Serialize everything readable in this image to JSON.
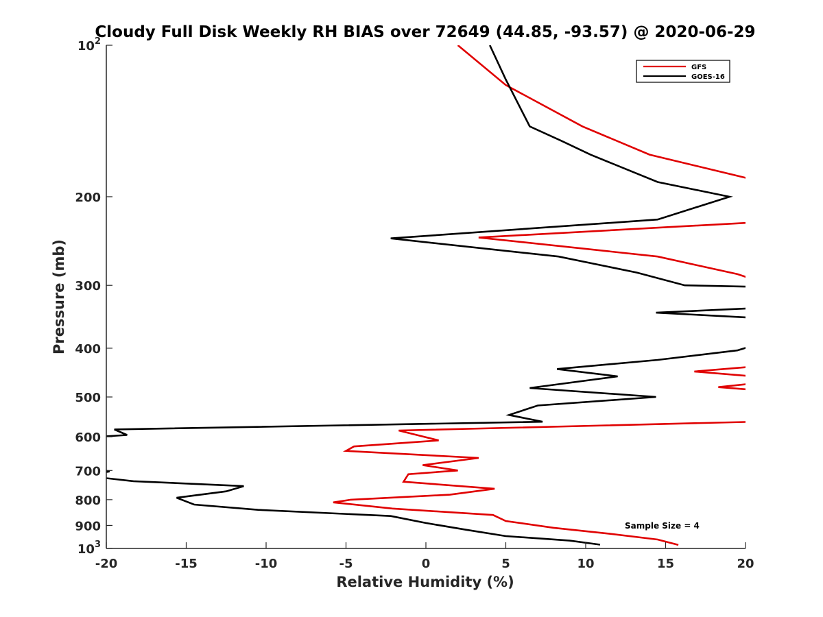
{
  "chart_data": {
    "type": "line",
    "title": "Cloudy Full Disk Weekly RH BIAS over 72649 (44.85, -93.57) @ 2020-06-29",
    "xlabel": "Relative Humidity (%)",
    "ylabel": "Pressure (mb)",
    "xlim": [
      -20,
      20
    ],
    "ylim": [
      100,
      1000
    ],
    "y_scale": "log",
    "y_reversed": true,
    "grid": false,
    "legend_position": "top-right",
    "x_ticks": [
      {
        "value": -20,
        "label": "-20"
      },
      {
        "value": -15,
        "label": "-15"
      },
      {
        "value": -10,
        "label": "-10"
      },
      {
        "value": -5,
        "label": "-5"
      },
      {
        "value": 0,
        "label": "0"
      },
      {
        "value": 5,
        "label": "5"
      },
      {
        "value": 10,
        "label": "10"
      },
      {
        "value": 15,
        "label": "15"
      },
      {
        "value": 20,
        "label": "20"
      }
    ],
    "y_ticks": [
      {
        "value": 100,
        "base": "10",
        "exp": "2"
      },
      {
        "value": 200,
        "label": "200"
      },
      {
        "value": 300,
        "label": "300"
      },
      {
        "value": 400,
        "label": "400"
      },
      {
        "value": 500,
        "label": "500"
      },
      {
        "value": 600,
        "label": "600"
      },
      {
        "value": 700,
        "label": "700"
      },
      {
        "value": 800,
        "label": "800"
      },
      {
        "value": 900,
        "label": "900"
      },
      {
        "value": 1000,
        "base": "10",
        "exp": "3"
      }
    ],
    "series": [
      {
        "name": "GFS",
        "color": "#e00000",
        "points": [
          [
            2.0,
            100
          ],
          [
            5.0,
            120
          ],
          [
            9.8,
            145
          ],
          [
            14.0,
            165
          ],
          [
            20.5,
            185
          ],
          [
            null,
            null
          ],
          [
            20.5,
            225
          ],
          [
            3.3,
            241
          ],
          [
            14.5,
            263
          ],
          [
            19.5,
            285
          ],
          [
            20.5,
            292
          ],
          [
            null,
            null
          ],
          [
            20.5,
            435
          ],
          [
            16.8,
            445
          ],
          [
            20.5,
            455
          ],
          [
            null,
            null
          ],
          [
            20.5,
            470
          ],
          [
            18.3,
            478
          ],
          [
            20.5,
            484
          ],
          [
            null,
            null
          ],
          [
            20.5,
            560
          ],
          [
            -1.7,
            583
          ],
          [
            0.8,
            610
          ],
          [
            -4.5,
            627
          ],
          [
            -5.0,
            640
          ],
          [
            3.3,
            661
          ],
          [
            -0.2,
            683
          ],
          [
            2.0,
            700
          ],
          [
            -1.1,
            712
          ],
          [
            -1.4,
            737
          ],
          [
            4.3,
            761
          ],
          [
            1.5,
            782
          ],
          [
            -4.7,
            800
          ],
          [
            -5.8,
            810
          ],
          [
            -2.1,
            833
          ],
          [
            4.2,
            858
          ],
          [
            5.0,
            882
          ],
          [
            8.0,
            910
          ],
          [
            11.5,
            935
          ],
          [
            14.5,
            960
          ],
          [
            15.8,
            984
          ]
        ]
      },
      {
        "name": "GOES-16",
        "color": "#000000",
        "points": [
          [
            4.0,
            100
          ],
          [
            5.0,
            117
          ],
          [
            6.5,
            145
          ],
          [
            8.5,
            155
          ],
          [
            10.3,
            165
          ],
          [
            14.5,
            187
          ],
          [
            19.0,
            200
          ],
          [
            14.5,
            222
          ],
          [
            -2.2,
            242
          ],
          [
            8.3,
            263
          ],
          [
            13.2,
            283
          ],
          [
            16.2,
            300
          ],
          [
            20.5,
            302
          ],
          [
            null,
            null
          ],
          [
            20.5,
            333
          ],
          [
            14.4,
            340
          ],
          [
            20.5,
            348
          ],
          [
            null,
            null
          ],
          [
            20.5,
            395
          ],
          [
            19.5,
            404
          ],
          [
            14.5,
            422
          ],
          [
            8.2,
            440
          ],
          [
            12.0,
            455
          ],
          [
            6.5,
            480
          ],
          [
            14.4,
            500
          ],
          [
            7.0,
            520
          ],
          [
            5.2,
            543
          ],
          [
            7.3,
            560
          ],
          [
            -19.5,
            580
          ],
          [
            -18.7,
            595
          ],
          [
            -20.5,
            600
          ],
          [
            null,
            null
          ],
          [
            -20.5,
            660
          ],
          [
            null,
            null
          ],
          [
            -20.5,
            695
          ],
          [
            -19.8,
            703
          ],
          [
            -20.5,
            710
          ],
          [
            null,
            null
          ],
          [
            -20.5,
            722
          ],
          [
            -18.3,
            735
          ],
          [
            -11.4,
            752
          ],
          [
            -12.5,
            770
          ],
          [
            -15.6,
            793
          ],
          [
            -14.5,
            818
          ],
          [
            -10.5,
            838
          ],
          [
            -2.2,
            862
          ],
          [
            0.0,
            890
          ],
          [
            2.5,
            918
          ],
          [
            5.0,
            945
          ],
          [
            9.0,
            965
          ],
          [
            10.9,
            983
          ]
        ]
      }
    ],
    "annotation": "Sample Size = 4"
  }
}
